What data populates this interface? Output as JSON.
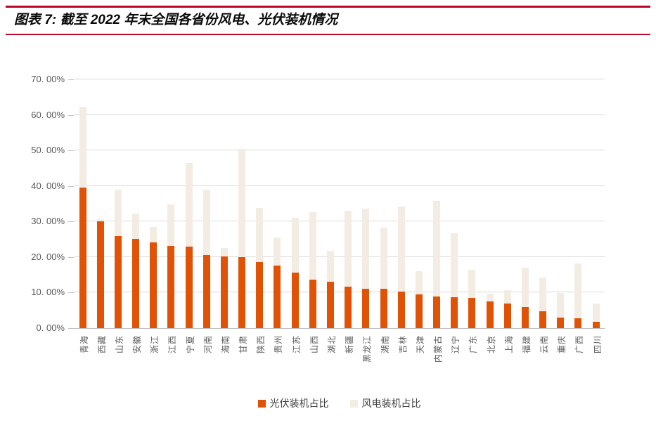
{
  "title": {
    "label": "图表 7: 截至 2022 年末全国各省份风电、光伏装机情况"
  },
  "colors": {
    "accent_rule_red": "#b80728",
    "solar_orange": "#e05206",
    "wind_beige": "#f3ece3",
    "gridline": "#d9d9d9",
    "axis_line": "#bfbfbf",
    "axis_text": "#595959",
    "legend_text": "#404040",
    "title_text": "#0a0a0a"
  },
  "chart_data": {
    "type": "bar",
    "bar_mode": "overlapped",
    "title": "",
    "xlabel": "",
    "ylabel": "",
    "ylim": [
      0,
      70
    ],
    "ytick_step": 10,
    "ytick_labels": [
      "0. 00%",
      "10. 00%",
      "20. 00%",
      "30. 00%",
      "40. 00%",
      "50. 00%",
      "60. 00%",
      "70. 00%"
    ],
    "grid": true,
    "legend_position": "bottom",
    "categories": [
      "青海",
      "西藏",
      "山东",
      "安徽",
      "浙江",
      "江西",
      "宁夏",
      "河南",
      "海南",
      "甘肃",
      "陕西",
      "贵州",
      "江苏",
      "山西",
      "湖北",
      "新疆",
      "黑龙江",
      "湖南",
      "吉林",
      "天津",
      "内蒙古",
      "辽宁",
      "广东",
      "北京",
      "上海",
      "福建",
      "云南",
      "重庆",
      "广西",
      "四川"
    ],
    "series": [
      {
        "name": "光伏装机占比",
        "color": "#e05206",
        "values": [
          39.5,
          30.1,
          25.9,
          25.2,
          24.2,
          23.1,
          23.0,
          20.5,
          20.1,
          19.9,
          18.6,
          17.7,
          15.7,
          13.7,
          13.0,
          11.6,
          11.1,
          11.0,
          10.2,
          9.5,
          9.0,
          8.8,
          8.6,
          7.5,
          6.9,
          6.0,
          4.7,
          2.9,
          2.8,
          1.8
        ]
      },
      {
        "name": "风电装机占比",
        "color": "#f3ece3",
        "values": [
          62.2,
          30.6,
          39.0,
          32.3,
          28.5,
          34.8,
          46.4,
          39.0,
          22.6,
          50.5,
          33.9,
          25.5,
          31.0,
          32.7,
          21.7,
          33.1,
          33.6,
          28.2,
          34.3,
          16.1,
          35.8,
          26.7,
          16.5,
          9.6,
          10.7,
          17.0,
          14.3,
          9.9,
          18.2,
          7.0
        ]
      }
    ]
  }
}
